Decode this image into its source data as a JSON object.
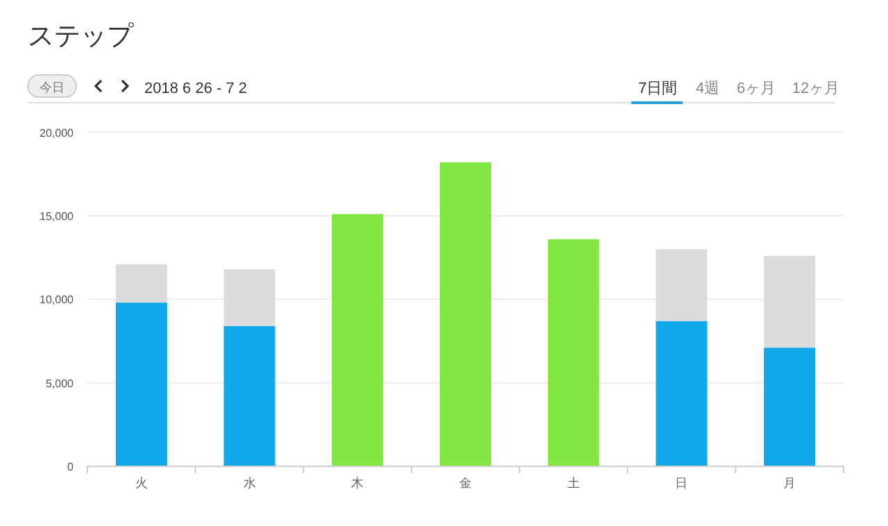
{
  "chart_data": {
    "type": "bar",
    "title": "ステップ",
    "subtitle": "2018 6 26 - 7 2",
    "annotations": [
      "今日",
      "7日間",
      "4週",
      "6ヶ月",
      "12ヶ月"
    ],
    "categories": [
      "火",
      "水",
      "木",
      "金",
      "土",
      "日",
      "月"
    ],
    "stacked": true,
    "series": [
      {
        "color": "#12a7ea",
        "values": [
          9800,
          8400,
          null,
          null,
          null,
          8700,
          7100
        ]
      },
      {
        "color": "#dcdcdc",
        "values": [
          2300,
          3400,
          null,
          null,
          null,
          4300,
          5500
        ]
      },
      {
        "color": "#82e841",
        "values": [
          null,
          null,
          15100,
          18200,
          13600,
          null,
          null
        ]
      }
    ],
    "ylim": [
      0,
      20000
    ],
    "yticks": [
      {
        "value": 0,
        "label": "0"
      },
      {
        "value": 5000,
        "label": "5,000"
      },
      {
        "value": 10000,
        "label": "10,000"
      },
      {
        "value": 15000,
        "label": "15,000"
      },
      {
        "value": 20000,
        "label": "20,000"
      }
    ],
    "grid": "y"
  }
}
